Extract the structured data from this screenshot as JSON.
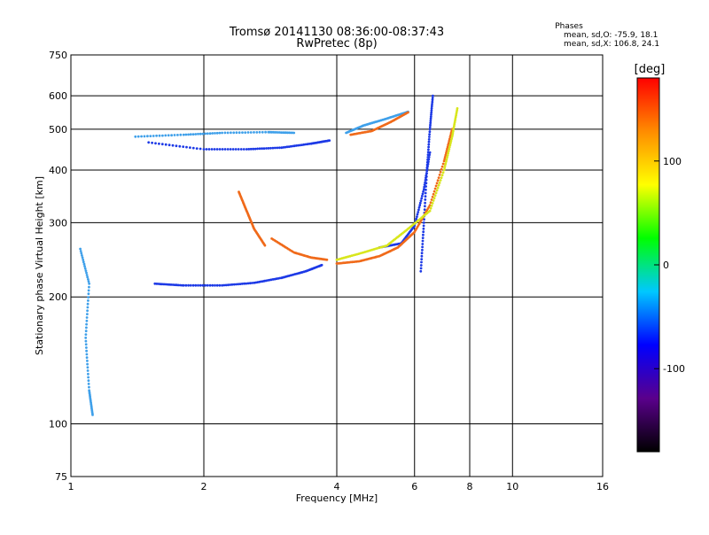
{
  "chart_data": {
    "type": "scatter",
    "title": "Tromsø 20141130 08:36:00-08:37:43",
    "subtitle": "RwPretec (8p)",
    "stats": {
      "heading": "Phases",
      "line_o": "mean, sd,O: -75.9, 18.1",
      "line_x": "mean, sd,X: 106.8, 24.1"
    },
    "xlabel": "Frequency [MHz]",
    "ylabel": "Stationary phase Virtual Height [km]",
    "x_scale": "log",
    "y_scale": "log",
    "xlim": [
      1,
      16
    ],
    "ylim": [
      75,
      750
    ],
    "x_ticks": [
      1,
      2,
      4,
      6,
      8,
      10,
      16
    ],
    "x_tick_labels": [
      "1",
      "2",
      "4",
      "6",
      "8",
      "10",
      "16"
    ],
    "y_ticks": [
      75,
      100,
      200,
      300,
      400,
      500,
      600,
      750
    ],
    "y_tick_labels": [
      "75",
      "100",
      "200",
      "300",
      "400",
      "500",
      "600",
      "750"
    ],
    "grid": true,
    "colorbar": {
      "label": "[deg]",
      "range": [
        -180,
        180
      ],
      "ticks": [
        -100,
        0,
        100
      ],
      "tick_labels": [
        "-100",
        "0",
        "100"
      ],
      "gradient": [
        "#000000",
        "#5a008c",
        "#0000ff",
        "#00c8ff",
        "#00ff00",
        "#ffff00",
        "#ff8c00",
        "#ff0000"
      ]
    },
    "series": [
      {
        "color": "#1c39e6",
        "traces": [
          [
            [
              1.55,
              215
            ],
            [
              1.8,
              213
            ],
            [
              2.2,
              213
            ],
            [
              2.6,
              216
            ],
            [
              3.0,
              222
            ],
            [
              3.4,
              230
            ],
            [
              3.7,
              238
            ]
          ],
          [
            [
              1.5,
              465
            ],
            [
              2.0,
              448
            ],
            [
              2.5,
              448
            ],
            [
              3.0,
              452
            ],
            [
              3.5,
              462
            ],
            [
              3.85,
              470
            ]
          ],
          [
            [
              6.2,
              230
            ],
            [
              6.3,
              300
            ],
            [
              6.4,
              400
            ],
            [
              6.5,
              500
            ],
            [
              6.6,
              600
            ]
          ],
          [
            [
              5.0,
              262
            ],
            [
              5.6,
              268
            ],
            [
              6.0,
              295
            ],
            [
              6.3,
              360
            ],
            [
              6.5,
              440
            ]
          ]
        ]
      },
      {
        "color": "#3fa0ea",
        "traces": [
          [
            [
              1.05,
              260
            ],
            [
              1.1,
              215
            ],
            [
              1.08,
              160
            ],
            [
              1.1,
              120
            ],
            [
              1.12,
              105
            ]
          ],
          [
            [
              1.4,
              480
            ],
            [
              1.8,
              485
            ],
            [
              2.2,
              490
            ],
            [
              2.8,
              492
            ],
            [
              3.2,
              490
            ]
          ],
          [
            [
              4.2,
              490
            ],
            [
              4.6,
              510
            ],
            [
              5.2,
              530
            ],
            [
              5.8,
              550
            ]
          ]
        ]
      },
      {
        "color": "#f06a1a",
        "traces": [
          [
            [
              2.4,
              355
            ],
            [
              2.5,
              320
            ],
            [
              2.6,
              290
            ],
            [
              2.75,
              265
            ]
          ],
          [
            [
              2.85,
              275
            ],
            [
              3.2,
              255
            ],
            [
              3.5,
              248
            ],
            [
              3.8,
              245
            ]
          ],
          [
            [
              4.0,
              240
            ],
            [
              4.5,
              243
            ],
            [
              5.0,
              250
            ],
            [
              5.5,
              262
            ],
            [
              6.0,
              285
            ],
            [
              6.5,
              330
            ],
            [
              7.0,
              420
            ],
            [
              7.3,
              500
            ]
          ],
          [
            [
              4.3,
              485
            ],
            [
              4.8,
              495
            ],
            [
              5.3,
              520
            ],
            [
              5.8,
              548
            ]
          ]
        ]
      },
      {
        "color": "#d8e61c",
        "traces": [
          [
            [
              4.0,
              245
            ],
            [
              4.6,
              255
            ],
            [
              5.2,
              265
            ],
            [
              5.8,
              290
            ],
            [
              6.5,
              320
            ],
            [
              7.0,
              400
            ],
            [
              7.3,
              480
            ],
            [
              7.5,
              560
            ]
          ]
        ]
      }
    ]
  }
}
